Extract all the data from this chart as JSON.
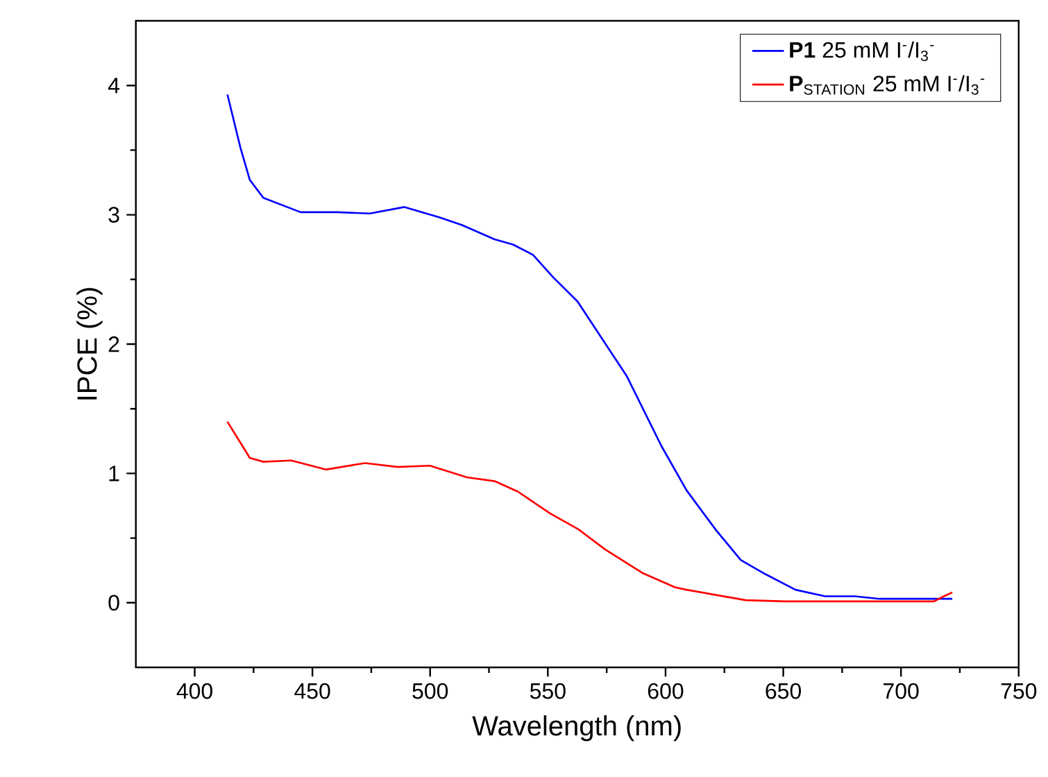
{
  "chart_data": {
    "type": "line",
    "xlabel": "Wavelength (nm)",
    "ylabel": "IPCE (%)",
    "xlim": [
      375,
      750
    ],
    "ylim": [
      -0.5,
      4.5
    ],
    "xticks": [
      400,
      450,
      500,
      550,
      600,
      650,
      700,
      750
    ],
    "yticks": [
      0,
      1,
      2,
      3,
      4
    ],
    "legend": "top right",
    "series": [
      {
        "name": "**P1** 25 mM I$^{-}$/I$_{3}$$^{-}$",
        "color": "#0000ff",
        "x": [
          413.9,
          419.4,
          423.4,
          429.2,
          445,
          460.6,
          474.4,
          489.1,
          503.9,
          513.6,
          527.4,
          535.2,
          543.7,
          552.1,
          562.6,
          583.6,
          598.3,
          608.9,
          621.5,
          632,
          642.5,
          655.2,
          667.8,
          680.4,
          691,
          703.5,
          721.8
        ],
        "values": [
          3.93,
          3.52,
          3.27,
          3.13,
          3.02,
          3.02,
          3.01,
          3.06,
          2.98,
          2.92,
          2.81,
          2.77,
          2.69,
          2.52,
          2.33,
          1.75,
          1.21,
          0.87,
          0.56,
          0.33,
          0.22,
          0.1,
          0.05,
          0.05,
          0.03,
          0.03,
          0.03
        ]
      },
      {
        "name": "**P**$_{STATION}$ 25 mM I$^{-}$/I$_{3}$$^{-}$",
        "color": "#ff0000",
        "x": [
          413.9,
          423.4,
          429.2,
          441,
          455.7,
          472.4,
          486.2,
          499.9,
          515.6,
          527.4,
          537.2,
          551,
          562.8,
          574.5,
          590.2,
          604,
          608.9,
          621.5,
          634.1,
          650.9,
          671.9,
          693,
          714,
          718.2,
          721.8
        ],
        "values": [
          1.4,
          1.12,
          1.09,
          1.1,
          1.03,
          1.08,
          1.05,
          1.06,
          0.97,
          0.94,
          0.86,
          0.69,
          0.57,
          0.41,
          0.23,
          0.12,
          0.1,
          0.06,
          0.02,
          0.01,
          0.01,
          0.01,
          0.01,
          0.05,
          0.08
        ]
      }
    ]
  }
}
